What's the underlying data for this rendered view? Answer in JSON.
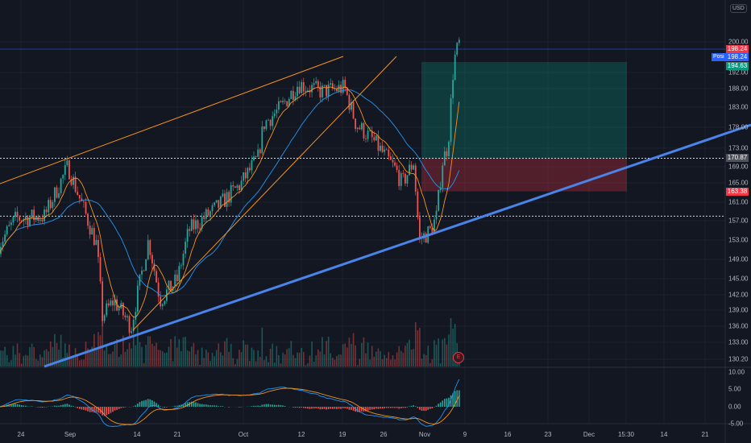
{
  "chart_data": {
    "type": "candlestick",
    "currency": "USD",
    "y_scale": "log",
    "ylim": [
      130.2,
      202
    ],
    "x_ticks": [
      "24",
      "Sep",
      "14",
      "21",
      "Oct",
      "12",
      "19",
      "26",
      "Nov",
      "9",
      "16",
      "23",
      "Dec",
      "15:30",
      "14",
      "21"
    ],
    "y_ticks": [
      "200.00",
      "192.00",
      "188.00",
      "183.00",
      "178.00",
      "173.00",
      "169.00",
      "165.00",
      "161.00",
      "157.00",
      "153.00",
      "149.00",
      "145.00",
      "142.00",
      "139.00",
      "136.00",
      "133.00",
      "130.20"
    ],
    "oscillator_ticks": [
      "10.00",
      "5.00",
      "0.00",
      "-5.00"
    ],
    "price_path": [
      {
        "date": "08-20",
        "close": 152
      },
      {
        "date": "08-23",
        "close": 157.5
      },
      {
        "date": "08-28",
        "close": 158
      },
      {
        "date": "09-01",
        "close": 169
      },
      {
        "date": "09-03",
        "close": 162
      },
      {
        "date": "09-06",
        "close": 152
      },
      {
        "date": "09-07",
        "close": 138
      },
      {
        "date": "09-09",
        "close": 141
      },
      {
        "date": "09-12",
        "close": 136
      },
      {
        "date": "09-15",
        "close": 153
      },
      {
        "date": "09-17",
        "close": 141
      },
      {
        "date": "09-20",
        "close": 145
      },
      {
        "date": "09-22",
        "close": 155
      },
      {
        "date": "09-27",
        "close": 160
      },
      {
        "date": "10-01",
        "close": 165
      },
      {
        "date": "10-04",
        "close": 171
      },
      {
        "date": "10-05",
        "close": 179
      },
      {
        "date": "10-08",
        "close": 183
      },
      {
        "date": "10-11",
        "close": 189
      },
      {
        "date": "10-15",
        "close": 187
      },
      {
        "date": "10-19",
        "close": 188
      },
      {
        "date": "10-21",
        "close": 179
      },
      {
        "date": "10-24",
        "close": 175
      },
      {
        "date": "10-28",
        "close": 168
      },
      {
        "date": "10-29",
        "close": 165
      },
      {
        "date": "10-31",
        "close": 170
      },
      {
        "date": "11-01",
        "close": 153
      },
      {
        "date": "11-03",
        "close": 155
      },
      {
        "date": "11-04",
        "close": 158
      },
      {
        "date": "11-05",
        "close": 170
      },
      {
        "date": "11-06",
        "close": 174
      },
      {
        "date": "11-07",
        "close": 195
      },
      {
        "date": "11-08",
        "close": 200
      }
    ],
    "levels": {
      "last_price": "198.24",
      "position_label": "Posi",
      "position_price": "198.24",
      "target": "194.63",
      "entry": "170.87",
      "stop": "163.38",
      "support_dotted": 158
    },
    "position": {
      "entry": 170.87,
      "target": 194.63,
      "stop": 163.38
    },
    "earnings_marker": "E",
    "colors": {
      "up": "#26a69a",
      "down": "#ef5350",
      "fast_ma": "#f7931a",
      "slow_ma": "#2196f3",
      "trendline": "#4a84e8",
      "channel": "#f7931a",
      "background": "#131722"
    }
  }
}
